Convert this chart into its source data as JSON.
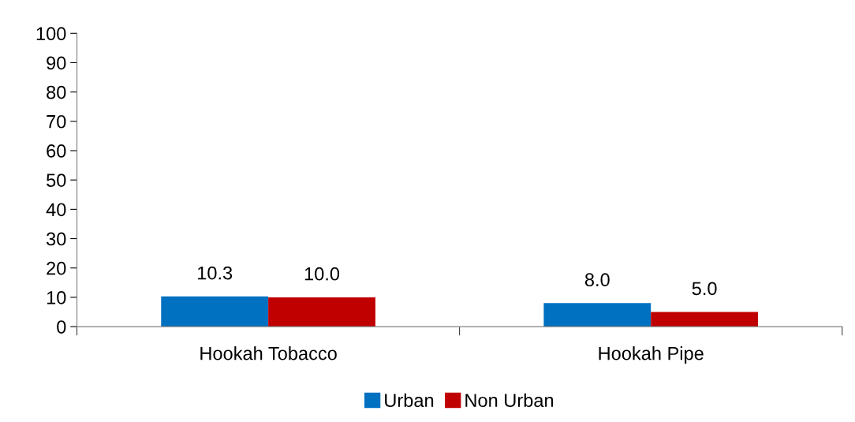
{
  "chart_data": {
    "type": "bar",
    "categories": [
      "Hookah Tobacco",
      "Hookah Pipe"
    ],
    "series": [
      {
        "name": "Urban",
        "color": "#0070c0",
        "values": [
          10.3,
          8.0
        ],
        "value_labels": [
          "10.3",
          "8.0"
        ]
      },
      {
        "name": "Non Urban",
        "color": "#c00000",
        "values": [
          10.0,
          5.0
        ],
        "value_labels": [
          "10.0",
          "5.0"
        ]
      }
    ],
    "ylim": [
      0,
      100
    ],
    "yticks": [
      0,
      10,
      20,
      30,
      40,
      50,
      60,
      70,
      80,
      90,
      100
    ],
    "grid": false,
    "legend": "bottom"
  }
}
